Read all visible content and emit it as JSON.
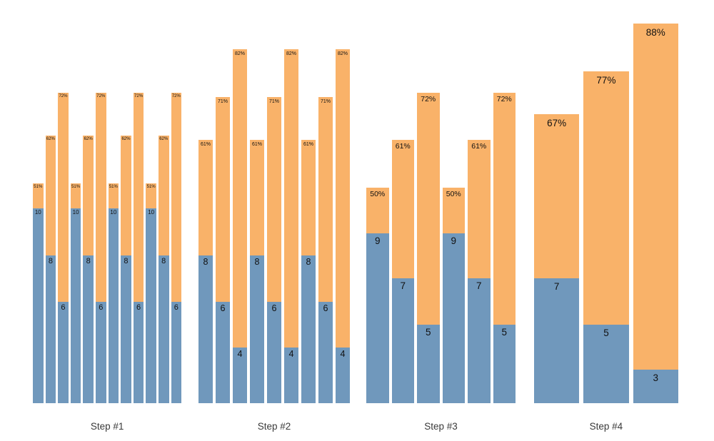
{
  "chart_data": {
    "type": "bar",
    "stacked": true,
    "title": "",
    "xlabel": "",
    "ylabel": "",
    "legend": null,
    "gridlines": false,
    "axes_visible": false,
    "value_unit": "percent",
    "ylim": [
      0,
      100
    ],
    "categories": [
      "Step #1",
      "Step #2",
      "Step #3",
      "Step #4"
    ],
    "colors": {
      "bottom_segment": "#7098BC",
      "top_segment": "#F9B269",
      "bar_label_text": "#111111",
      "axis_label_text": "#3A3A3A",
      "background": "#FFFFFF"
    },
    "groups": [
      {
        "label": "Step #1",
        "bars": [
          {
            "pct_label": "51%",
            "pct": 51,
            "count_label": "10",
            "count": 10,
            "count_bar_pct": 45.1
          },
          {
            "pct_label": "62%",
            "pct": 62,
            "count_label": "8",
            "count": 8,
            "count_bar_pct": 34.3
          },
          {
            "pct_label": "72%",
            "pct": 72,
            "count_label": "6",
            "count": 6,
            "count_bar_pct": 23.5
          },
          {
            "pct_label": "51%",
            "pct": 51,
            "count_label": "10",
            "count": 10,
            "count_bar_pct": 45.1
          },
          {
            "pct_label": "62%",
            "pct": 62,
            "count_label": "8",
            "count": 8,
            "count_bar_pct": 34.3
          },
          {
            "pct_label": "72%",
            "pct": 72,
            "count_label": "6",
            "count": 6,
            "count_bar_pct": 23.5
          },
          {
            "pct_label": "51%",
            "pct": 51,
            "count_label": "10",
            "count": 10,
            "count_bar_pct": 45.1
          },
          {
            "pct_label": "62%",
            "pct": 62,
            "count_label": "8",
            "count": 8,
            "count_bar_pct": 34.3
          },
          {
            "pct_label": "72%",
            "pct": 72,
            "count_label": "6",
            "count": 6,
            "count_bar_pct": 23.5
          },
          {
            "pct_label": "51%",
            "pct": 51,
            "count_label": "10",
            "count": 10,
            "count_bar_pct": 45.1
          },
          {
            "pct_label": "62%",
            "pct": 62,
            "count_label": "8",
            "count": 8,
            "count_bar_pct": 34.3
          },
          {
            "pct_label": "72%",
            "pct": 72,
            "count_label": "6",
            "count": 6,
            "count_bar_pct": 23.5
          }
        ]
      },
      {
        "label": "Step #2",
        "bars": [
          {
            "pct_label": "61%",
            "pct": 61,
            "count_label": "8",
            "count": 8,
            "count_bar_pct": 34.3
          },
          {
            "pct_label": "71%",
            "pct": 71,
            "count_label": "6",
            "count": 6,
            "count_bar_pct": 23.5
          },
          {
            "pct_label": "82%",
            "pct": 82,
            "count_label": "4",
            "count": 4,
            "count_bar_pct": 12.9
          },
          {
            "pct_label": "61%",
            "pct": 61,
            "count_label": "8",
            "count": 8,
            "count_bar_pct": 34.3
          },
          {
            "pct_label": "71%",
            "pct": 71,
            "count_label": "6",
            "count": 6,
            "count_bar_pct": 23.5
          },
          {
            "pct_label": "82%",
            "pct": 82,
            "count_label": "4",
            "count": 4,
            "count_bar_pct": 12.9
          },
          {
            "pct_label": "61%",
            "pct": 61,
            "count_label": "8",
            "count": 8,
            "count_bar_pct": 34.3
          },
          {
            "pct_label": "71%",
            "pct": 71,
            "count_label": "6",
            "count": 6,
            "count_bar_pct": 23.5
          },
          {
            "pct_label": "82%",
            "pct": 82,
            "count_label": "4",
            "count": 4,
            "count_bar_pct": 12.9
          }
        ]
      },
      {
        "label": "Step #3",
        "bars": [
          {
            "pct_label": "50%",
            "pct": 50,
            "count_label": "9",
            "count": 9,
            "count_bar_pct": 39.4
          },
          {
            "pct_label": "61%",
            "pct": 61,
            "count_label": "7",
            "count": 7,
            "count_bar_pct": 28.9
          },
          {
            "pct_label": "72%",
            "pct": 72,
            "count_label": "5",
            "count": 5,
            "count_bar_pct": 18.2
          },
          {
            "pct_label": "50%",
            "pct": 50,
            "count_label": "9",
            "count": 9,
            "count_bar_pct": 39.4
          },
          {
            "pct_label": "61%",
            "pct": 61,
            "count_label": "7",
            "count": 7,
            "count_bar_pct": 28.9
          },
          {
            "pct_label": "72%",
            "pct": 72,
            "count_label": "5",
            "count": 5,
            "count_bar_pct": 18.2
          }
        ]
      },
      {
        "label": "Step #4",
        "bars": [
          {
            "pct_label": "67%",
            "pct": 67,
            "count_label": "7",
            "count": 7,
            "count_bar_pct": 28.9
          },
          {
            "pct_label": "77%",
            "pct": 77,
            "count_label": "5",
            "count": 5,
            "count_bar_pct": 18.2
          },
          {
            "pct_label": "88%",
            "pct": 88,
            "count_label": "3",
            "count": 3,
            "count_bar_pct": 7.8
          }
        ]
      }
    ]
  }
}
